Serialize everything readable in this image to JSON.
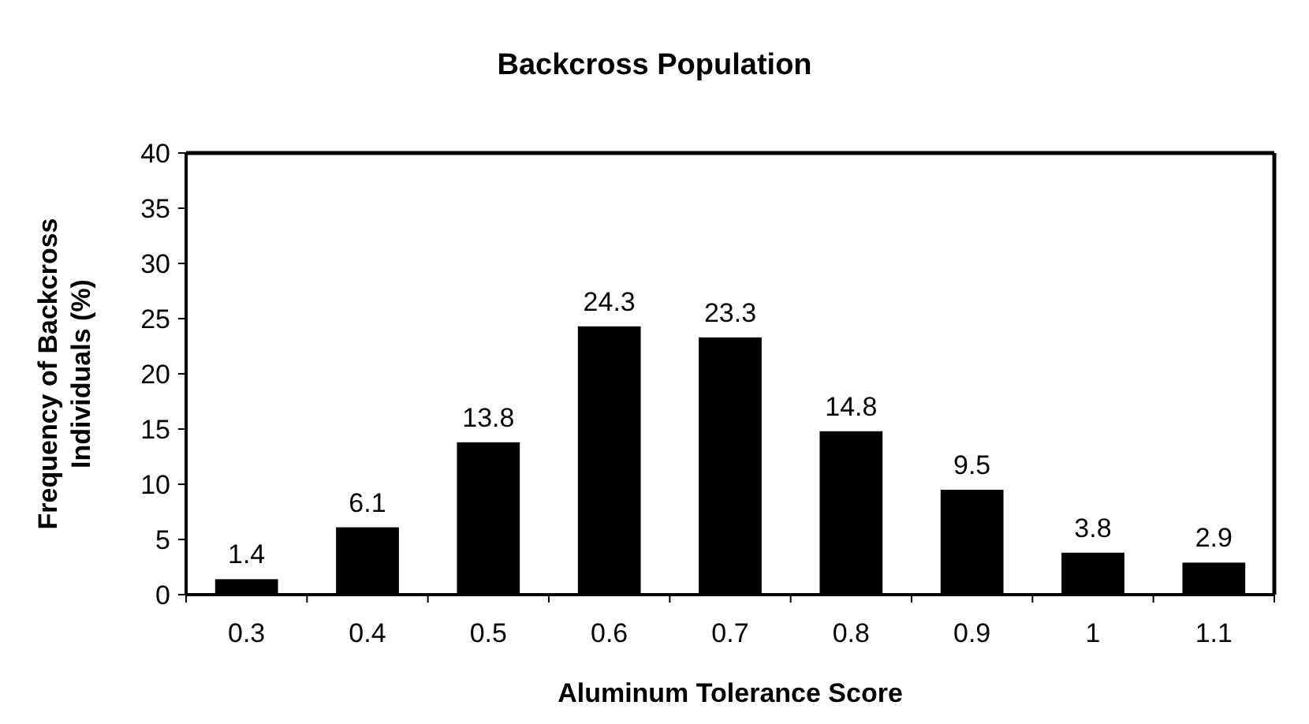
{
  "chart_data": {
    "type": "bar",
    "title": "Backcross Population",
    "xlabel": "Aluminum Tolerance Score",
    "ylabel": "Frequency of Backcross Individuals (%)",
    "categories": [
      "0.3",
      "0.4",
      "0.5",
      "0.6",
      "0.7",
      "0.8",
      "0.9",
      "1",
      "1.1"
    ],
    "values": [
      1.4,
      6.1,
      13.8,
      24.3,
      23.3,
      14.8,
      9.5,
      3.8,
      2.9
    ],
    "color": "#000000",
    "data_labels": true,
    "ylim": [
      0,
      40
    ],
    "yticks": [
      0,
      5,
      10,
      15,
      20,
      25,
      30,
      35,
      40
    ],
    "grid": false
  }
}
